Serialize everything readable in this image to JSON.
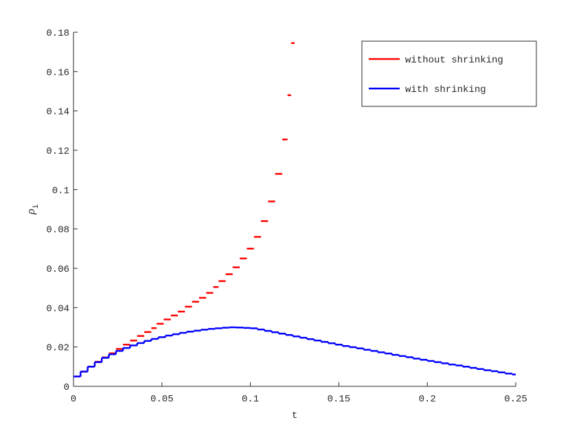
{
  "chart_data": {
    "type": "step",
    "xlabel": "t",
    "ylabel": "ρ",
    "ylabel_sub": "i",
    "xlim": [
      0,
      0.25
    ],
    "xticks": [
      0,
      0.05,
      0.1,
      0.15,
      0.2,
      0.25
    ],
    "ylim": [
      0,
      0.18
    ],
    "yticks": [
      0,
      0.02,
      0.04,
      0.06,
      0.08,
      0.1,
      0.12,
      0.14,
      0.16,
      0.18
    ],
    "legend": "top-right",
    "series": [
      {
        "name": "without shrinking",
        "color": "#ff0000",
        "connected": false,
        "x": [
          0,
          0.004,
          0.008,
          0.012,
          0.016,
          0.02,
          0.024,
          0.028,
          0.032,
          0.036,
          0.04,
          0.044,
          0.047,
          0.051,
          0.055,
          0.059,
          0.063,
          0.067,
          0.071,
          0.075,
          0.079,
          0.082,
          0.086,
          0.09,
          0.094,
          0.098,
          0.102,
          0.106,
          0.11,
          0.114,
          0.118,
          0.121,
          0.123
        ],
        "values": [
          0.005,
          0.0075,
          0.01,
          0.0125,
          0.0147,
          0.0168,
          0.019,
          0.0212,
          0.0233,
          0.0256,
          0.0276,
          0.0296,
          0.0318,
          0.034,
          0.036,
          0.038,
          0.0405,
          0.043,
          0.045,
          0.0475,
          0.0505,
          0.0535,
          0.057,
          0.0605,
          0.065,
          0.07,
          0.076,
          0.084,
          0.094,
          0.108,
          0.1255,
          0.148,
          0.1745
        ]
      },
      {
        "name": "with shrinking",
        "color": "#0000ff",
        "connected": true,
        "x": [
          0,
          0.004,
          0.008,
          0.012,
          0.016,
          0.02,
          0.024,
          0.028,
          0.032,
          0.036,
          0.04,
          0.044,
          0.048,
          0.052,
          0.056,
          0.06,
          0.064,
          0.068,
          0.072,
          0.076,
          0.08,
          0.084,
          0.088,
          0.092,
          0.096,
          0.1,
          0.104,
          0.108,
          0.112,
          0.116,
          0.12,
          0.124,
          0.128,
          0.132,
          0.136,
          0.14,
          0.144,
          0.148,
          0.152,
          0.156,
          0.16,
          0.164,
          0.168,
          0.172,
          0.176,
          0.18,
          0.184,
          0.188,
          0.192,
          0.196,
          0.2,
          0.204,
          0.208,
          0.212,
          0.216,
          0.22,
          0.224,
          0.228,
          0.232,
          0.236,
          0.24,
          0.244,
          0.248
        ],
        "values": [
          0.005,
          0.0075,
          0.01,
          0.0123,
          0.0145,
          0.0163,
          0.018,
          0.0195,
          0.0208,
          0.022,
          0.0231,
          0.0241,
          0.025,
          0.0258,
          0.0265,
          0.0272,
          0.0278,
          0.0283,
          0.0288,
          0.0292,
          0.0295,
          0.0298,
          0.03,
          0.0299,
          0.0297,
          0.0295,
          0.0289,
          0.0282,
          0.0275,
          0.0268,
          0.0261,
          0.0254,
          0.0247,
          0.024,
          0.0233,
          0.0226,
          0.0219,
          0.0212,
          0.0205,
          0.0199,
          0.0193,
          0.0186,
          0.018,
          0.0173,
          0.0167,
          0.016,
          0.0154,
          0.0148,
          0.0141,
          0.0135,
          0.0129,
          0.0123,
          0.0117,
          0.0111,
          0.0106,
          0.01,
          0.0094,
          0.0088,
          0.0082,
          0.0077,
          0.0071,
          0.0065,
          0.006
        ]
      }
    ]
  }
}
